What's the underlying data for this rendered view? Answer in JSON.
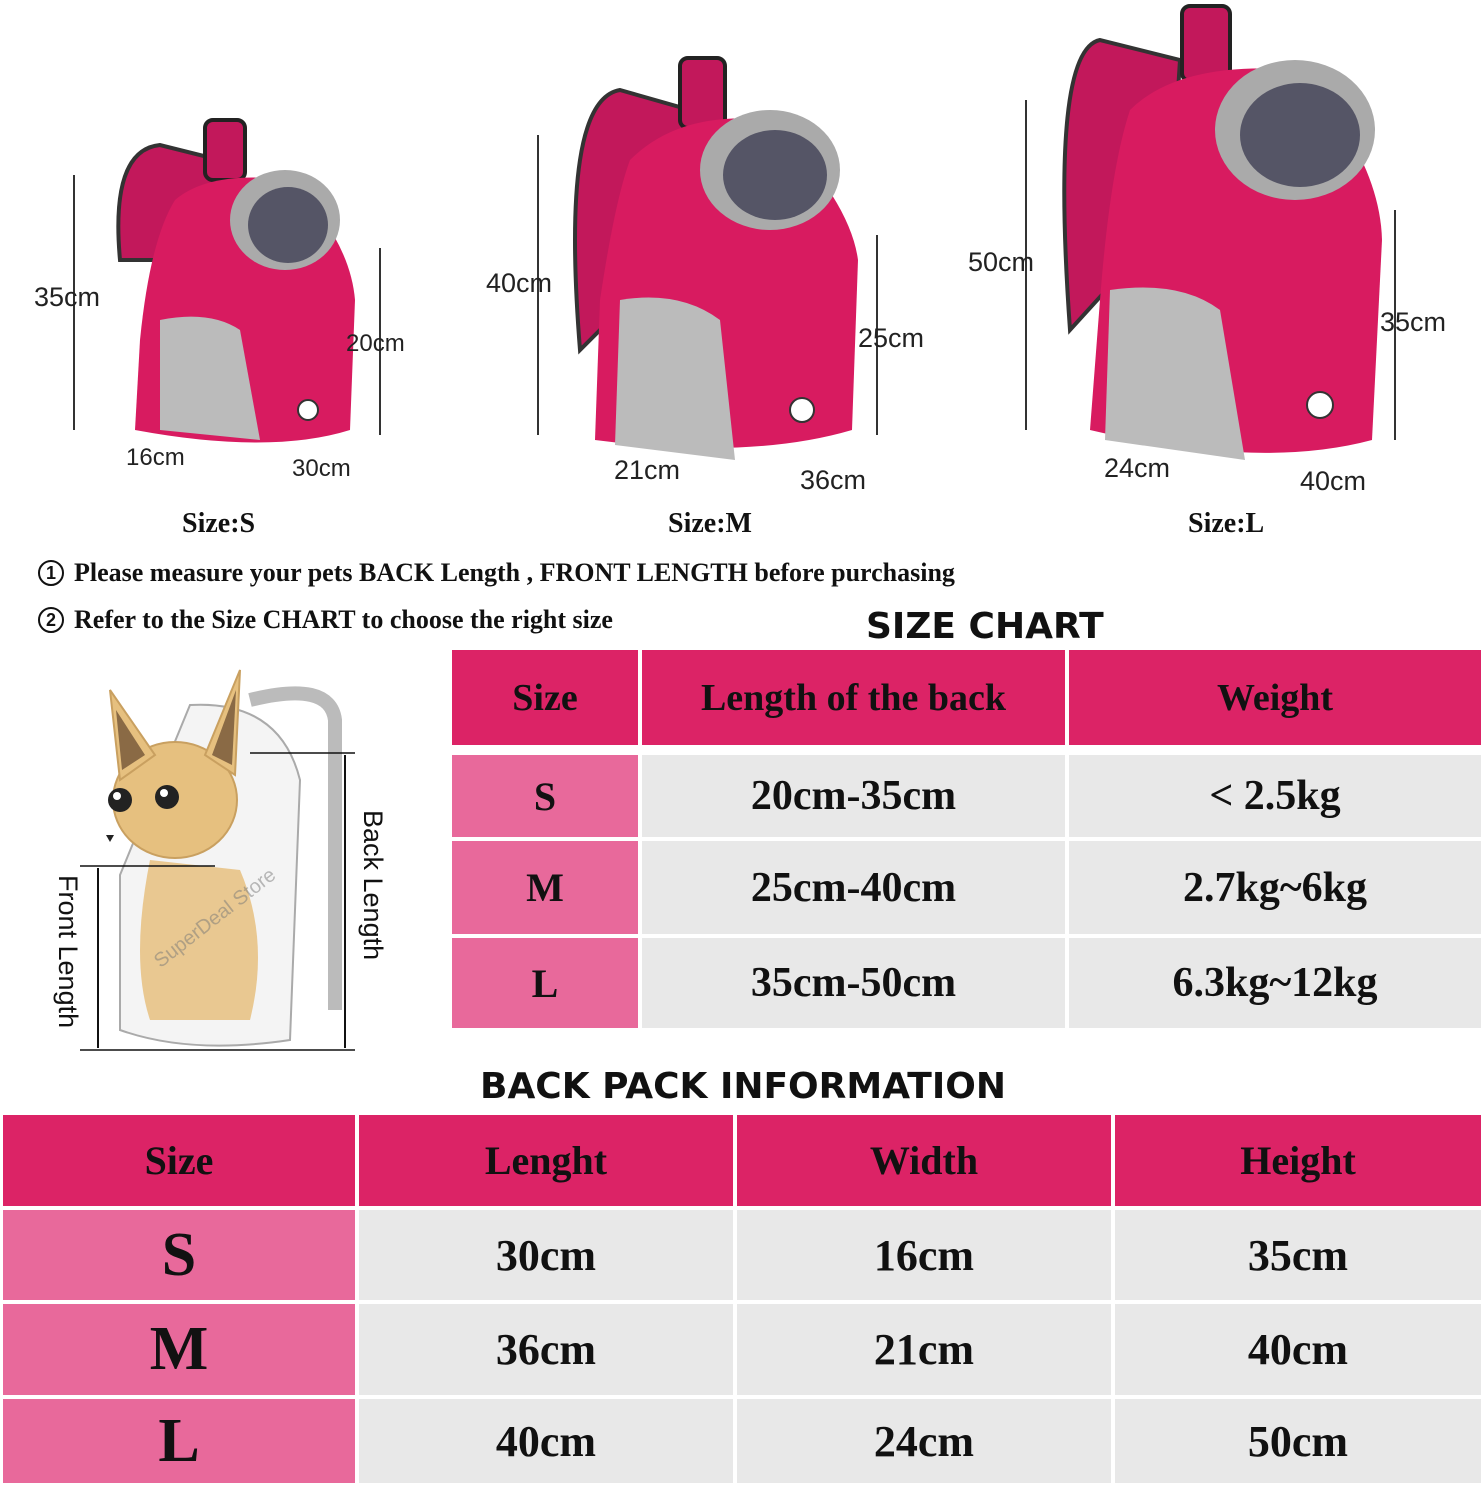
{
  "backpacks": [
    {
      "size_label": "Size:S",
      "height": "35cm",
      "depth_height": "20cm",
      "width": "16cm",
      "length": "30cm"
    },
    {
      "size_label": "Size:M",
      "height": "40cm",
      "depth_height": "25cm",
      "width": "21cm",
      "length": "36cm"
    },
    {
      "size_label": "Size:L",
      "height": "50cm",
      "depth_height": "35cm",
      "width": "24cm",
      "length": "40cm"
    }
  ],
  "instructions": [
    {
      "number": "1",
      "text": "Please measure your pets BACK  Length , FRONT LENGTH before purchasing"
    },
    {
      "number": "2",
      "text": "Refer to the Size CHART to choose the right size"
    }
  ],
  "diagram": {
    "back_label": "Back Length",
    "front_label": "Front Length",
    "watermark": "SuperDeal Store"
  },
  "size_chart": {
    "title": "SIZE CHART",
    "headers": [
      "Size",
      "Length of the back",
      "Weight"
    ],
    "rows": [
      [
        "S",
        "20cm-35cm",
        "< 2.5kg"
      ],
      [
        "M",
        "25cm-40cm",
        "2.7kg~6kg"
      ],
      [
        "L",
        "35cm-50cm",
        "6.3kg~12kg"
      ]
    ]
  },
  "backpack_info": {
    "title": "BACK PACK INFORMATION",
    "headers": [
      "Size",
      "Lenght",
      "Width",
      "Height"
    ],
    "rows": [
      [
        "S",
        "30cm",
        "16cm",
        "35cm"
      ],
      [
        "M",
        "36cm",
        "21cm",
        "40cm"
      ],
      [
        "L",
        "40cm",
        "24cm",
        "50cm"
      ]
    ]
  },
  "colors": {
    "header": "#dc2366",
    "size_cell": "#e8699b",
    "cell": "#e8e8e8",
    "bag": "#d81b60"
  }
}
